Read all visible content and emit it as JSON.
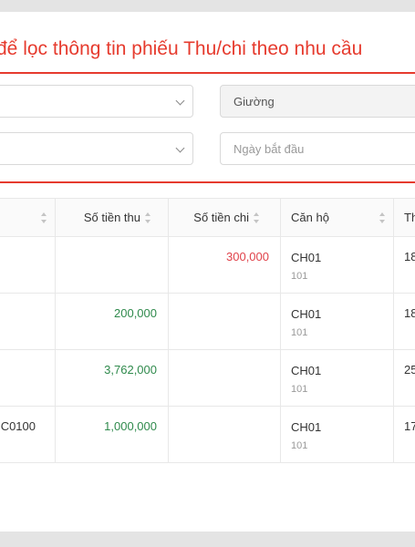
{
  "hint_text": "để lọc thông tin phiếu Thu/chi theo nhu cầu",
  "filters": {
    "bed_value": "Giường",
    "start_date_placeholder": "Ngày bắt đầu"
  },
  "table": {
    "headers": {
      "income": "Số tiền thu",
      "expense": "Số tiền chi",
      "apartment": "Căn hộ",
      "next": "Th"
    },
    "rows": [
      {
        "code": "",
        "income": "",
        "expense": "300,000",
        "apartment": "CH01",
        "room": "101",
        "next": "18"
      },
      {
        "code": "",
        "income": "200,000",
        "expense": "",
        "apartment": "CH01",
        "room": "101",
        "next": "18"
      },
      {
        "code": "",
        "income": "3,762,000",
        "expense": "",
        "apartment": "CH01",
        "room": "101",
        "next": "25"
      },
      {
        "code": "C0100",
        "income": "1,000,000",
        "expense": "",
        "apartment": "CH01",
        "room": "101",
        "next": "17"
      }
    ]
  },
  "colors": {
    "accent_red": "#e63b2e",
    "income_green": "#2f8a4c",
    "expense_red": "#e0424a"
  }
}
